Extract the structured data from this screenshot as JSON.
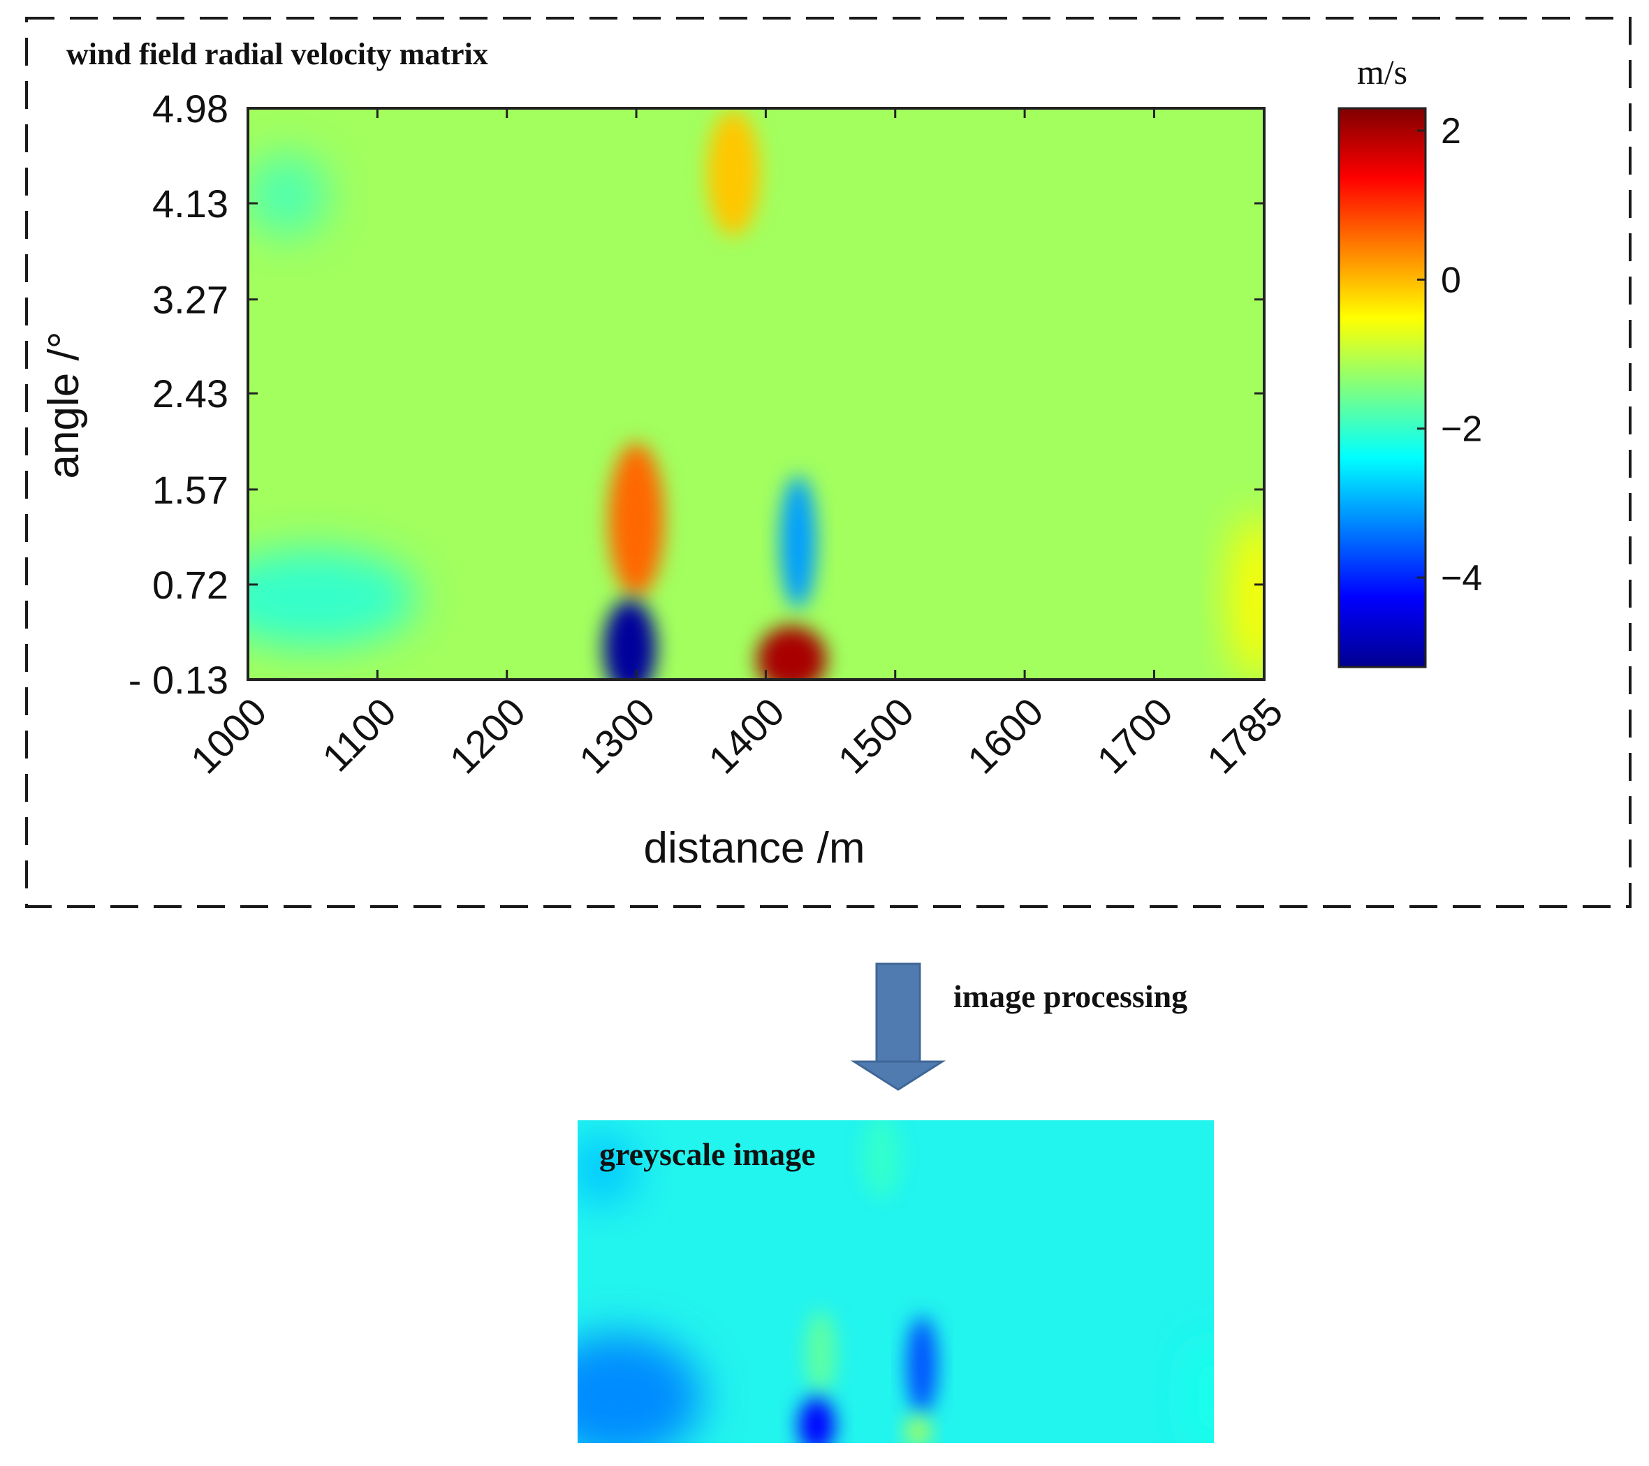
{
  "top_panel": {
    "label": "wind field radial velocity matrix"
  },
  "process_label": "image processing",
  "bottom_panel": {
    "label": "greyscale image"
  },
  "chart_data": {
    "type": "heatmap",
    "title": "wind field radial velocity matrix",
    "xlabel": "distance /m",
    "ylabel": "angle /°",
    "x_ticks": [
      1000,
      1100,
      1200,
      1300,
      1400,
      1500,
      1600,
      1700,
      1785
    ],
    "x_tick_labels": [
      "1000",
      "1100",
      "1200",
      "1300",
      "1400",
      "1500",
      "1600",
      "1700",
      "1785"
    ],
    "y_ticks": [
      -0.13,
      0.72,
      1.57,
      2.43,
      3.27,
      4.13,
      4.98
    ],
    "y_tick_labels": [
      "- 0.13",
      "0.72",
      "1.57",
      "2.43",
      "3.27",
      "4.13",
      "4.98"
    ],
    "xlim": [
      1000,
      1785
    ],
    "ylim": [
      -0.13,
      4.98
    ],
    "colorbar": {
      "label": "m/s",
      "range": [
        -5.2,
        2.3
      ],
      "ticks": [
        2,
        0,
        -2,
        -4
      ],
      "tick_labels": [
        "2",
        "0",
        "−2",
        "−4"
      ],
      "colormap": "jet"
    },
    "background_value": -1.2,
    "features": [
      {
        "name": "strong-negative-core",
        "x": 1295,
        "y": 0.15,
        "value": -5.0
      },
      {
        "name": "strong-positive-core",
        "x": 1420,
        "y": 0.05,
        "value": 2.0
      },
      {
        "name": "positive-band",
        "x": 1300,
        "y": 1.3,
        "value": 0.6
      },
      {
        "name": "negative-band",
        "x": 1425,
        "y": 1.1,
        "value": -3.1
      },
      {
        "name": "positive-top-patch",
        "x": 1375,
        "y": 4.4,
        "value": -0.1
      },
      {
        "name": "left-low-region",
        "x": 1050,
        "y": 0.6,
        "value": -2.0
      },
      {
        "name": "left-top-region",
        "x": 1030,
        "y": 4.2,
        "value": -1.8
      },
      {
        "name": "right-edge-region",
        "x": 1780,
        "y": 0.6,
        "value": -0.5
      }
    ]
  }
}
